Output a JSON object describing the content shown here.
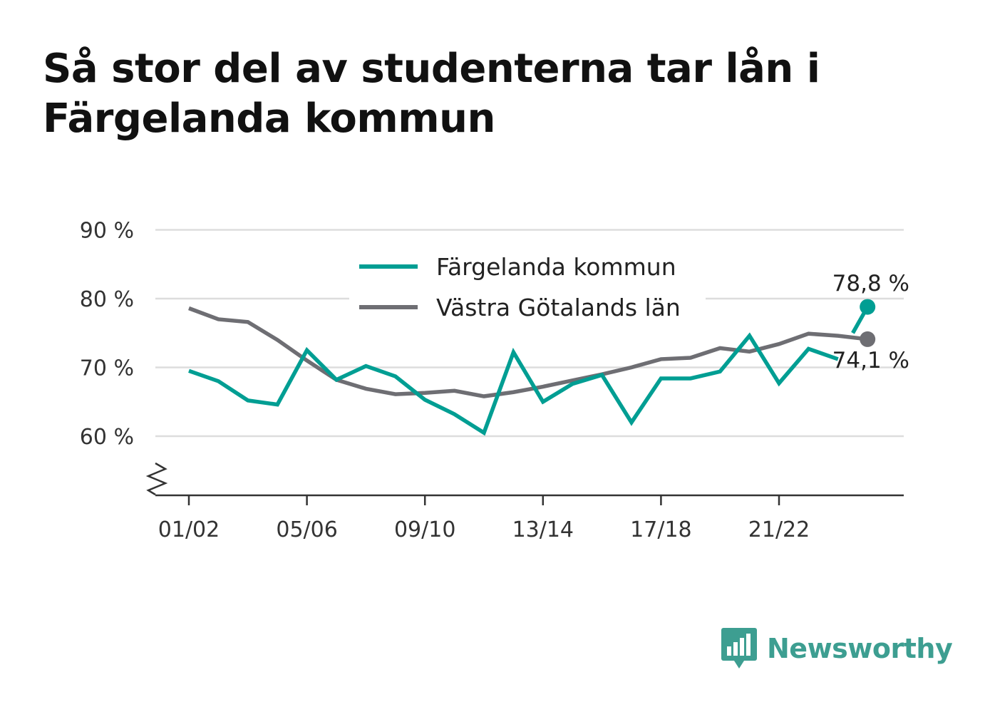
{
  "title": "Så stor del av studenterna tar lån i Färgelanda kommun",
  "logo_text": "Newsworthy",
  "chart_data": {
    "type": "line",
    "title": "Så stor del av studenterna tar lån i Färgelanda kommun",
    "categories": [
      "01/02",
      "02/03",
      "03/04",
      "04/05",
      "05/06",
      "06/07",
      "07/08",
      "08/09",
      "09/10",
      "10/11",
      "11/12",
      "12/13",
      "13/14",
      "14/15",
      "15/16",
      "16/17",
      "17/18",
      "18/19",
      "19/20",
      "20/21",
      "21/22",
      "22/23",
      "23/24",
      "24/25"
    ],
    "x_tick_labels": [
      "01/02",
      "05/06",
      "09/10",
      "13/14",
      "17/18",
      "21/22"
    ],
    "y_tick_labels": [
      "90 %",
      "80 %",
      "70 %",
      "60 %"
    ],
    "y_ticks": [
      90,
      80,
      70,
      60
    ],
    "ylim": [
      51.5,
      90
    ],
    "y_axis_break": true,
    "grid": true,
    "legend_position": "top-center",
    "series": [
      {
        "name": "Färgelanda kommun",
        "color": "#009e93",
        "values": [
          69.5,
          68.0,
          65.2,
          64.6,
          72.5,
          68.2,
          70.2,
          68.7,
          65.3,
          63.2,
          60.5,
          72.2,
          65.0,
          67.6,
          68.9,
          62.0,
          68.4,
          68.4,
          69.4,
          74.6,
          67.7,
          72.7,
          71.2,
          78.8
        ],
        "gap_before_index": 23,
        "end_label": "78,8 %"
      },
      {
        "name": "Västra Götalands län",
        "color": "#6e6e73",
        "values": [
          78.6,
          77.0,
          76.6,
          74.0,
          71.0,
          68.2,
          66.9,
          66.1,
          66.3,
          66.6,
          65.8,
          66.4,
          67.2,
          68.1,
          69.0,
          70.0,
          71.2,
          71.4,
          72.8,
          72.3,
          73.4,
          74.9,
          74.6,
          74.1
        ],
        "end_label": "74,1 %"
      }
    ]
  }
}
